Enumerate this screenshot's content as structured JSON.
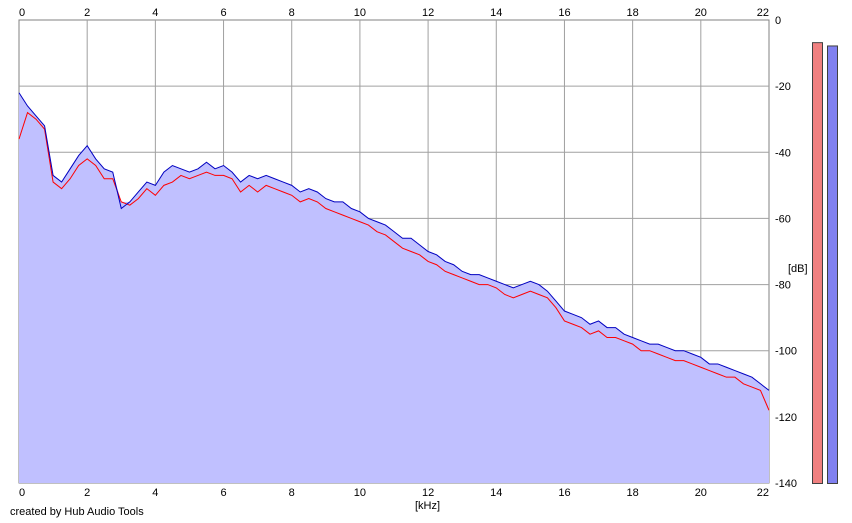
{
  "chart_data": {
    "type": "area",
    "title": "",
    "xlabel": "[kHz]",
    "ylabel": "[dB]",
    "xlim": [
      0,
      22
    ],
    "ylim": [
      -140,
      0
    ],
    "x_ticks": [
      0,
      2,
      4,
      6,
      8,
      10,
      12,
      14,
      16,
      18,
      20,
      22
    ],
    "y_ticks": [
      0,
      -20,
      -40,
      -60,
      -80,
      -100,
      -120,
      -140
    ],
    "y_tick_labels": [
      "0",
      "-20",
      "-40",
      "-60",
      "-80",
      "-100",
      "-120",
      "-140"
    ],
    "grid": true,
    "fill_color": "#c0c0ff",
    "series": [
      {
        "color": "#ff0000",
        "x": [
          0,
          0.25,
          0.5,
          0.75,
          1,
          1.25,
          1.5,
          1.75,
          2,
          2.25,
          2.5,
          2.75,
          3,
          3.25,
          3.5,
          3.75,
          4,
          4.25,
          4.5,
          4.75,
          5,
          5.25,
          5.5,
          5.75,
          6,
          6.25,
          6.5,
          6.75,
          7,
          7.25,
          7.5,
          7.75,
          8,
          8.25,
          8.5,
          8.75,
          9,
          9.25,
          9.5,
          9.75,
          10,
          10.25,
          10.5,
          10.75,
          11,
          11.25,
          11.5,
          11.75,
          12,
          12.25,
          12.5,
          12.75,
          13,
          13.25,
          13.5,
          13.75,
          14,
          14.25,
          14.5,
          14.75,
          15,
          15.25,
          15.5,
          15.75,
          16,
          16.25,
          16.5,
          16.75,
          17,
          17.25,
          17.5,
          17.75,
          18,
          18.25,
          18.5,
          18.75,
          19,
          19.25,
          19.5,
          19.75,
          20,
          20.25,
          20.5,
          20.75,
          21,
          21.25,
          21.5,
          21.75,
          22
        ],
        "values": [
          -36,
          -28,
          -30,
          -33,
          -49,
          -51,
          -48,
          -44,
          -42,
          -44,
          -48,
          -48,
          -55,
          -56,
          -54,
          -51,
          -53,
          -50,
          -49,
          -47,
          -48,
          -47,
          -46,
          -47,
          -47,
          -48,
          -52,
          -50,
          -52,
          -50,
          -51,
          -52,
          -53,
          -55,
          -54,
          -55,
          -57,
          -58,
          -59,
          -60,
          -61,
          -62,
          -64,
          -65,
          -67,
          -69,
          -70,
          -71,
          -73,
          -74,
          -76,
          -77,
          -78,
          -79,
          -80,
          -80,
          -81,
          -83,
          -84,
          -83,
          -82,
          -83,
          -84,
          -87,
          -91,
          -92,
          -93,
          -95,
          -94,
          -96,
          -96,
          -97,
          -98,
          -100,
          -100,
          -101,
          -102,
          -103,
          -103,
          -104,
          -105,
          -106,
          -107,
          -108,
          -108,
          -110,
          -111,
          -112,
          -118
        ]
      },
      {
        "color": "#0000c0",
        "x": [
          0,
          0.25,
          0.5,
          0.75,
          1,
          1.25,
          1.5,
          1.75,
          2,
          2.25,
          2.5,
          2.75,
          3,
          3.25,
          3.5,
          3.75,
          4,
          4.25,
          4.5,
          4.75,
          5,
          5.25,
          5.5,
          5.75,
          6,
          6.25,
          6.5,
          6.75,
          7,
          7.25,
          7.5,
          7.75,
          8,
          8.25,
          8.5,
          8.75,
          9,
          9.25,
          9.5,
          9.75,
          10,
          10.25,
          10.5,
          10.75,
          11,
          11.25,
          11.5,
          11.75,
          12,
          12.25,
          12.5,
          12.75,
          13,
          13.25,
          13.5,
          13.75,
          14,
          14.25,
          14.5,
          14.75,
          15,
          15.25,
          15.5,
          15.75,
          16,
          16.25,
          16.5,
          16.75,
          17,
          17.25,
          17.5,
          17.75,
          18,
          18.25,
          18.5,
          18.75,
          19,
          19.25,
          19.5,
          19.75,
          20,
          20.25,
          20.5,
          20.75,
          21,
          21.25,
          21.5,
          21.75,
          22
        ],
        "values": [
          -22,
          -26,
          -29,
          -32,
          -47,
          -49,
          -45,
          -41,
          -38,
          -42,
          -45,
          -46,
          -57,
          -55,
          -52,
          -49,
          -50,
          -46,
          -44,
          -45,
          -46,
          -45,
          -43,
          -45,
          -44,
          -46,
          -49,
          -47,
          -48,
          -47,
          -48,
          -49,
          -50,
          -52,
          -51,
          -52,
          -54,
          -55,
          -55,
          -57,
          -58,
          -60,
          -61,
          -62,
          -64,
          -66,
          -66,
          -68,
          -70,
          -71,
          -73,
          -74,
          -76,
          -77,
          -77,
          -78,
          -79,
          -80,
          -81,
          -80,
          -79,
          -80,
          -82,
          -85,
          -88,
          -89,
          -90,
          -92,
          -91,
          -93,
          -93,
          -95,
          -96,
          -97,
          -98,
          -98,
          -99,
          -100,
          -100,
          -101,
          -102,
          -104,
          -104,
          -105,
          -106,
          -107,
          -108,
          -110,
          -112
        ]
      }
    ]
  },
  "labels": {
    "x_unit": "[kHz]",
    "y_unit": "[dB]",
    "credit": "created by Hub Audio Tools"
  },
  "meters": {
    "left_color": "#f08080",
    "right_color": "#8080f0",
    "left_level_db": -7,
    "right_level_db": -8
  }
}
